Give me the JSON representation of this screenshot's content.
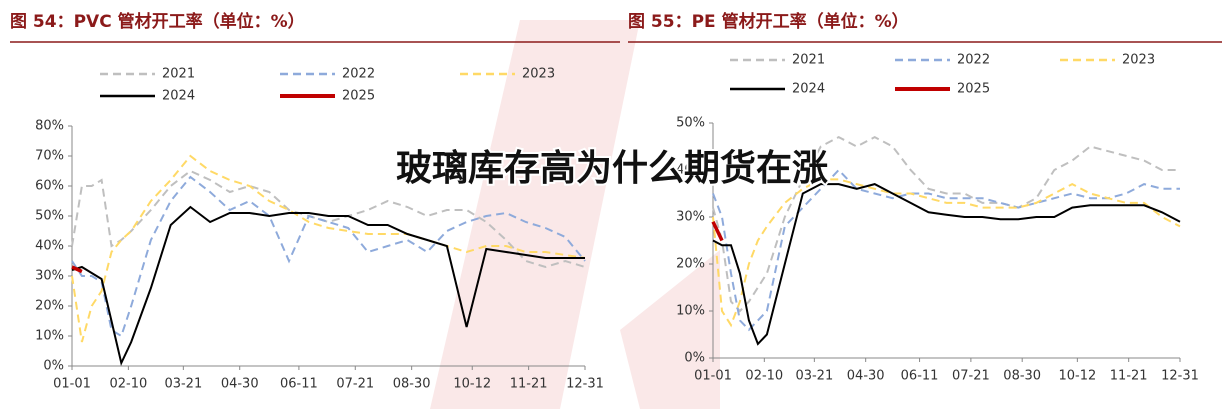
{
  "chart_data": [
    {
      "type": "line",
      "title": "图 54：PVC 管材开工率（单位：%）",
      "x": [
        0,
        7,
        14,
        21,
        28,
        35,
        42,
        56,
        70,
        84,
        98,
        112,
        126,
        140,
        154,
        168,
        182,
        196,
        210,
        224,
        238,
        252,
        266,
        280,
        294,
        308,
        322,
        336,
        350,
        364
      ],
      "xlim": [
        0,
        364
      ],
      "xticks": [
        {
          "value": 0,
          "label": "01-01"
        },
        {
          "value": 40,
          "label": "02-10"
        },
        {
          "value": 79,
          "label": "03-21"
        },
        {
          "value": 119,
          "label": "04-30"
        },
        {
          "value": 161,
          "label": "06-11"
        },
        {
          "value": 201,
          "label": "07-21"
        },
        {
          "value": 241,
          "label": "08-30"
        },
        {
          "value": 284,
          "label": "10-12"
        },
        {
          "value": 324,
          "label": "11-21"
        },
        {
          "value": 364,
          "label": "12-31"
        }
      ],
      "ylim": [
        0,
        80
      ],
      "yticks": [
        {
          "value": 0,
          "label": "0%"
        },
        {
          "value": 10,
          "label": "10%"
        },
        {
          "value": 20,
          "label": "20%"
        },
        {
          "value": 30,
          "label": "30%"
        },
        {
          "value": 40,
          "label": "40%"
        },
        {
          "value": 50,
          "label": "50%"
        },
        {
          "value": 60,
          "label": "60%"
        },
        {
          "value": 70,
          "label": "70%"
        },
        {
          "value": 80,
          "label": "80%"
        }
      ],
      "series": [
        {
          "name": "2021",
          "color": "#bfbfbf",
          "dashed": true,
          "values": [
            40,
            60,
            60,
            62,
            40,
            42,
            45,
            52,
            60,
            65,
            62,
            58,
            60,
            58,
            52,
            50,
            48,
            50,
            52,
            55,
            53,
            50,
            52,
            52,
            48,
            42,
            35,
            33,
            35,
            33
          ]
        },
        {
          "name": "2022",
          "color": "#8eaadb",
          "dashed": true,
          "values": [
            35,
            30,
            30,
            28,
            12,
            10,
            20,
            42,
            55,
            63,
            58,
            52,
            55,
            50,
            35,
            50,
            48,
            46,
            38,
            40,
            42,
            38,
            45,
            48,
            50,
            51,
            48,
            46,
            43,
            35
          ]
        },
        {
          "name": "2023",
          "color": "#ffd966",
          "dashed": true,
          "values": [
            30,
            8,
            20,
            25,
            38,
            42,
            45,
            55,
            62,
            70,
            65,
            62,
            60,
            55,
            52,
            48,
            46,
            45,
            44,
            44,
            44,
            42,
            40,
            38,
            40,
            40,
            38,
            38,
            37,
            36
          ]
        },
        {
          "name": "2024",
          "color": "#000000",
          "dashed": false,
          "values": [
            32,
            33,
            31,
            29,
            15,
            1,
            8,
            26,
            47,
            53,
            48,
            51,
            51,
            50,
            51,
            51,
            50,
            50,
            47,
            47,
            44,
            42,
            40,
            13,
            39,
            38,
            37,
            36,
            36,
            36
          ]
        },
        {
          "name": "2025",
          "color": "#c00000",
          "dashed": false,
          "values": [
            33,
            31.5,
            null,
            null,
            null,
            null,
            null,
            null,
            null,
            null,
            null,
            null,
            null,
            null,
            null,
            null,
            null,
            null,
            null,
            null,
            null,
            null,
            null,
            null,
            null,
            null,
            null,
            null,
            null,
            null
          ]
        }
      ]
    },
    {
      "type": "line",
      "title": "图 55：PE 管材开工率（单位：%）",
      "x": [
        0,
        7,
        14,
        21,
        28,
        35,
        42,
        56,
        70,
        84,
        98,
        112,
        126,
        140,
        154,
        168,
        182,
        196,
        210,
        224,
        238,
        252,
        266,
        280,
        294,
        308,
        322,
        336,
        350,
        364
      ],
      "xlim": [
        0,
        364
      ],
      "xticks": [
        {
          "value": 0,
          "label": "01-01"
        },
        {
          "value": 40,
          "label": "02-10"
        },
        {
          "value": 79,
          "label": "03-21"
        },
        {
          "value": 119,
          "label": "04-30"
        },
        {
          "value": 161,
          "label": "06-11"
        },
        {
          "value": 201,
          "label": "07-21"
        },
        {
          "value": 241,
          "label": "08-30"
        },
        {
          "value": 284,
          "label": "10-12"
        },
        {
          "value": 324,
          "label": "11-21"
        },
        {
          "value": 364,
          "label": "12-31"
        }
      ],
      "ylim": [
        0,
        50
      ],
      "yticks": [
        {
          "value": 0,
          "label": "0%"
        },
        {
          "value": 10,
          "label": "10%"
        },
        {
          "value": 20,
          "label": "20%"
        },
        {
          "value": 30,
          "label": "30%"
        },
        {
          "value": 40,
          "label": "40%"
        },
        {
          "value": 50,
          "label": "50%"
        }
      ],
      "series": [
        {
          "name": "2021",
          "color": "#bfbfbf",
          "dashed": true,
          "values": [
            32,
            25,
            12,
            10,
            12,
            15,
            18,
            30,
            38,
            45,
            47,
            45,
            47,
            45,
            40,
            36,
            35,
            35,
            33,
            33,
            32,
            34,
            40,
            42,
            45,
            44,
            43,
            42,
            40,
            40
          ]
        },
        {
          "name": "2022",
          "color": "#8eaadb",
          "dashed": true,
          "values": [
            35,
            30,
            18,
            8,
            6,
            8,
            10,
            28,
            32,
            36,
            40,
            36,
            35,
            34,
            35,
            35,
            34,
            34,
            34,
            33,
            32,
            33,
            34,
            35,
            34,
            34,
            35,
            37,
            36,
            36
          ]
        },
        {
          "name": "2023",
          "color": "#ffd966",
          "dashed": true,
          "values": [
            30,
            10,
            7,
            12,
            20,
            25,
            28,
            33,
            36,
            38,
            38,
            37,
            36,
            35,
            35,
            34,
            33,
            33,
            32,
            32,
            32,
            33,
            35,
            37,
            35,
            34,
            33,
            33,
            30,
            28
          ]
        },
        {
          "name": "2024",
          "color": "#000000",
          "dashed": false,
          "values": [
            25,
            24,
            24,
            18,
            8,
            3,
            5,
            20,
            35,
            37,
            37,
            36,
            37,
            35,
            33,
            31,
            30.5,
            30,
            30,
            29.5,
            29.5,
            30,
            30,
            32,
            32.5,
            32.5,
            32.5,
            32.5,
            31,
            29
          ]
        },
        {
          "name": "2025",
          "color": "#c00000",
          "dashed": false,
          "values": [
            29,
            25,
            null,
            null,
            null,
            null,
            null,
            null,
            null,
            null,
            null,
            null,
            null,
            null,
            null,
            null,
            null,
            null,
            null,
            null,
            null,
            null,
            null,
            null,
            null,
            null,
            null,
            null,
            null,
            null
          ]
        }
      ]
    }
  ],
  "overlay": "玻璃库存高为什么期货在涨"
}
